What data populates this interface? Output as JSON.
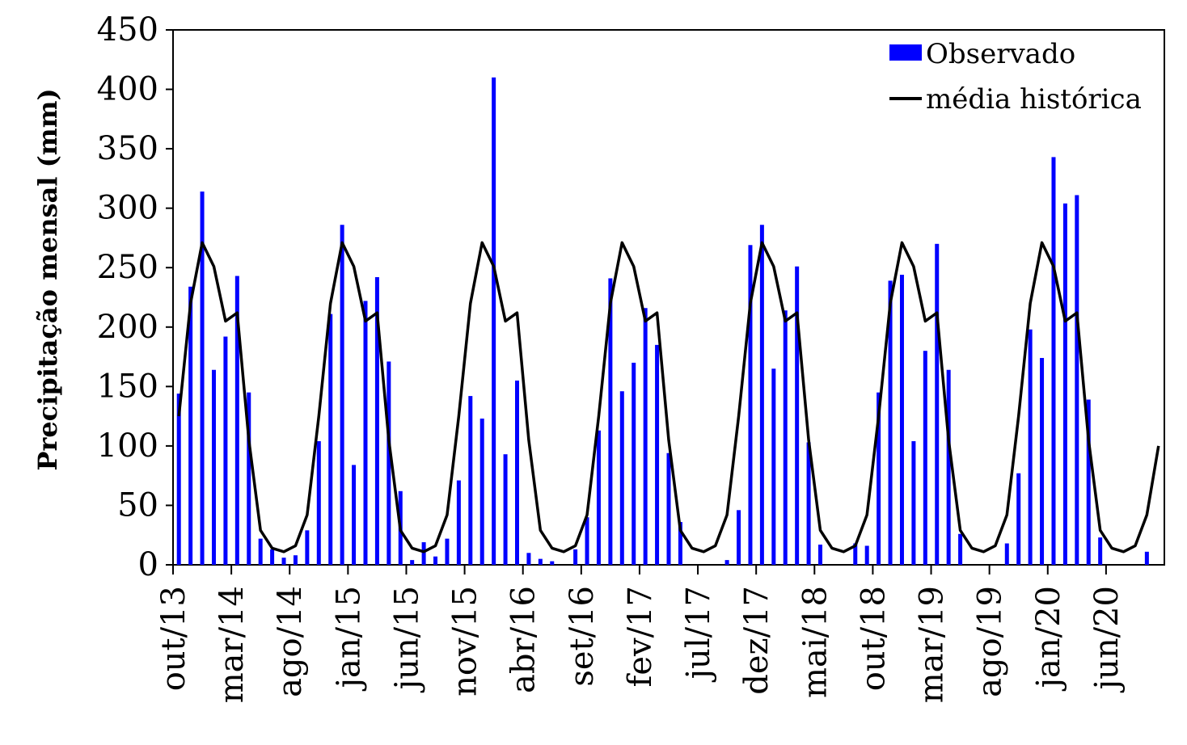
{
  "chart_data": {
    "type": "bar+line",
    "title": "",
    "xlabel": "",
    "ylabel": "Precipitação mensal (mm)",
    "ylim": [
      0,
      450
    ],
    "yticks": [
      0,
      50,
      100,
      150,
      200,
      250,
      300,
      350,
      400,
      450
    ],
    "grid": false,
    "legend_position": "top-right",
    "start_month": "out/13",
    "n_months": 85,
    "x_tick_labels": [
      {
        "index": 0,
        "label": "out/13"
      },
      {
        "index": 5,
        "label": "mar/14"
      },
      {
        "index": 10,
        "label": "ago/14"
      },
      {
        "index": 15,
        "label": "jan/15"
      },
      {
        "index": 20,
        "label": "jun/15"
      },
      {
        "index": 25,
        "label": "nov/15"
      },
      {
        "index": 30,
        "label": "abr/16"
      },
      {
        "index": 35,
        "label": "set/16"
      },
      {
        "index": 40,
        "label": "fev/17"
      },
      {
        "index": 45,
        "label": "jul/17"
      },
      {
        "index": 50,
        "label": "dez/17"
      },
      {
        "index": 55,
        "label": "mai/18"
      },
      {
        "index": 60,
        "label": "out/18"
      },
      {
        "index": 65,
        "label": "mar/19"
      },
      {
        "index": 70,
        "label": "ago/19"
      },
      {
        "index": 75,
        "label": "jan/20"
      },
      {
        "index": 80,
        "label": "jun/20"
      }
    ],
    "series": [
      {
        "name": "Observado",
        "kind": "bar",
        "color": "#0000ff",
        "values": [
          144,
          234,
          314,
          164,
          192,
          243,
          145,
          22,
          13,
          6,
          8,
          29,
          104,
          211,
          286,
          84,
          222,
          242,
          171,
          62,
          4,
          19,
          7,
          22,
          71,
          142,
          123,
          410,
          93,
          155,
          10,
          5,
          3,
          0,
          13,
          40,
          113,
          241,
          146,
          170,
          216,
          185,
          94,
          36,
          0,
          0,
          0,
          4,
          46,
          269,
          286,
          165,
          214,
          251,
          103,
          17,
          0,
          0,
          18,
          16,
          145,
          239,
          244,
          104,
          180,
          270,
          164,
          26,
          0,
          0,
          0,
          18,
          77,
          198,
          174,
          343,
          304,
          311,
          139,
          23,
          0,
          0,
          0,
          11
        ]
      },
      {
        "name": "média histórica",
        "kind": "line",
        "color": "#000000",
        "values": [
          125,
          220,
          271,
          251,
          205,
          212,
          105,
          29,
          14,
          11,
          16,
          42,
          125,
          220,
          271,
          251,
          205,
          212,
          105,
          29,
          14,
          11,
          16,
          42,
          125,
          220,
          271,
          251,
          205,
          212,
          105,
          29,
          14,
          11,
          16,
          42,
          125,
          220,
          271,
          251,
          205,
          212,
          105,
          29,
          14,
          11,
          16,
          42,
          125,
          220,
          271,
          251,
          205,
          212,
          105,
          29,
          14,
          11,
          16,
          42,
          125,
          220,
          271,
          251,
          205,
          212,
          105,
          29,
          14,
          11,
          16,
          42,
          125,
          220,
          271,
          251,
          205,
          212,
          105,
          29,
          14,
          11,
          16,
          42,
          100
        ]
      }
    ]
  }
}
